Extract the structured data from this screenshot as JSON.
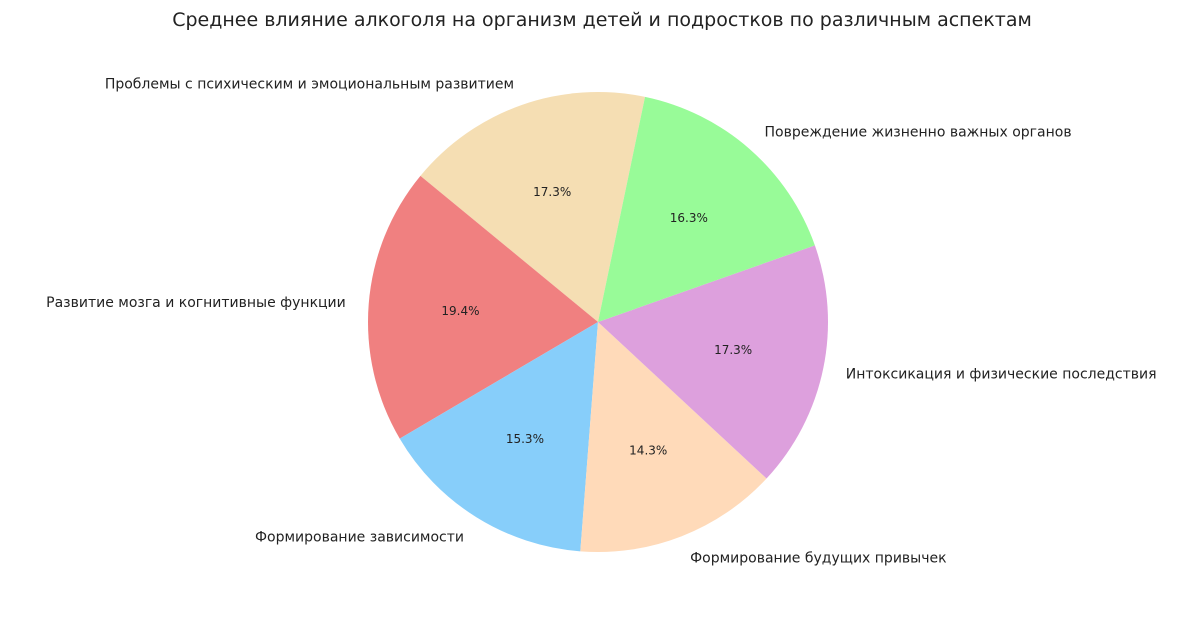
{
  "chart_data": {
    "type": "pie",
    "title": "Среднее влияние алкоголя на организм детей и подростков по различным аспектам",
    "start_angle_deg": 78.2,
    "direction": "counterclockwise",
    "slices": [
      {
        "label": "Проблемы с психическим и эмоциональным развитием",
        "value": 17.3,
        "pct_label": "17.3%",
        "color": "#f5deb3"
      },
      {
        "label": "Развитие мозга и когнитивные функции",
        "value": 19.4,
        "pct_label": "19.4%",
        "color": "#f08080"
      },
      {
        "label": "Формирование зависимости",
        "value": 15.3,
        "pct_label": "15.3%",
        "color": "#87cefa"
      },
      {
        "label": "Формирование будущих привычек",
        "value": 14.3,
        "pct_label": "14.3%",
        "color": "#ffdab9"
      },
      {
        "label": "Интоксикация и физические последствия",
        "value": 17.3,
        "pct_label": "17.3%",
        "color": "#dda0dd"
      },
      {
        "label": "Повреждение жизненно важных органов",
        "value": 16.3,
        "pct_label": "16.3%",
        "color": "#98fb98"
      }
    ]
  }
}
